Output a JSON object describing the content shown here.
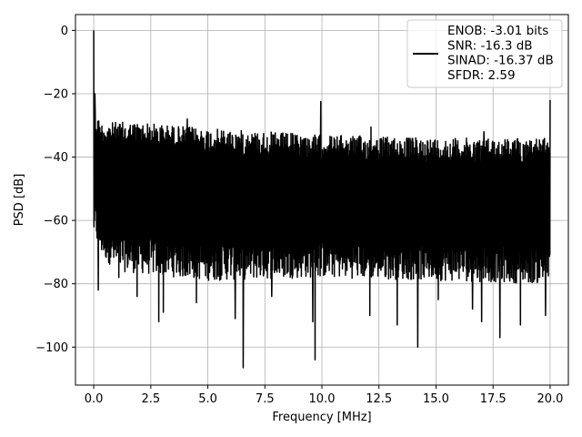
{
  "chart_data": {
    "type": "line",
    "xlabel": "Frequency [MHz]",
    "ylabel": "PSD [dB]",
    "xlim": [
      -0.8,
      20.8
    ],
    "ylim": [
      -112,
      5
    ],
    "xticks": [
      0.0,
      2.5,
      5.0,
      7.5,
      10.0,
      12.5,
      15.0,
      17.5,
      20.0
    ],
    "xtick_labels": [
      "0.0",
      "2.5",
      "5.0",
      "7.5",
      "10.0",
      "12.5",
      "15.0",
      "17.5",
      "20.0"
    ],
    "yticks": [
      0,
      -20,
      -40,
      -60,
      -80,
      -100
    ],
    "ytick_labels": [
      "0",
      "−20",
      "−40",
      "−60",
      "−80",
      "−100"
    ],
    "grid": true,
    "legend_placement": "top-right",
    "series": [
      {
        "name": "ENOB: -3.01 bits\nSNR: -16.3 dB\nSINAD: -16.37 dB\nSFDR: 2.59",
        "color": "#000000",
        "noise_floor_upper": [
          [
            0.05,
            -25
          ],
          [
            0.3,
            -29
          ],
          [
            2,
            -29
          ],
          [
            5,
            -31
          ],
          [
            10,
            -33
          ],
          [
            15,
            -34
          ],
          [
            20,
            -34
          ]
        ],
        "noise_floor_lower": [
          [
            0.05,
            -62
          ],
          [
            0.3,
            -67
          ],
          [
            1,
            -72
          ],
          [
            5,
            -75
          ],
          [
            10,
            -74
          ],
          [
            15,
            -75
          ],
          [
            20,
            -76
          ]
        ],
        "peaks": [
          [
            0.0,
            0
          ],
          [
            0.05,
            -20
          ],
          [
            4.1,
            -28
          ],
          [
            9.95,
            -22.5
          ],
          [
            12.15,
            -30.5
          ],
          [
            17.1,
            -32
          ],
          [
            20.0,
            -22
          ]
        ],
        "dips": [
          [
            0.2,
            -82
          ],
          [
            1.1,
            -78
          ],
          [
            1.9,
            -84
          ],
          [
            2.85,
            -92
          ],
          [
            3.05,
            -89
          ],
          [
            4.5,
            -86
          ],
          [
            6.55,
            -106.5
          ],
          [
            6.2,
            -91
          ],
          [
            7.8,
            -84
          ],
          [
            9.6,
            -92
          ],
          [
            9.7,
            -104
          ],
          [
            12.1,
            -90
          ],
          [
            13.3,
            -93
          ],
          [
            14.2,
            -100
          ],
          [
            15.1,
            -85
          ],
          [
            16.6,
            -88
          ],
          [
            17.0,
            -92
          ],
          [
            17.8,
            -97
          ],
          [
            18.7,
            -93
          ],
          [
            19.8,
            -90
          ],
          [
            20.0,
            -85
          ]
        ]
      }
    ],
    "legend_lines": [
      "ENOB: -3.01 bits",
      "SNR: -16.3 dB",
      "SINAD: -16.37 dB",
      "SFDR: 2.59"
    ]
  }
}
